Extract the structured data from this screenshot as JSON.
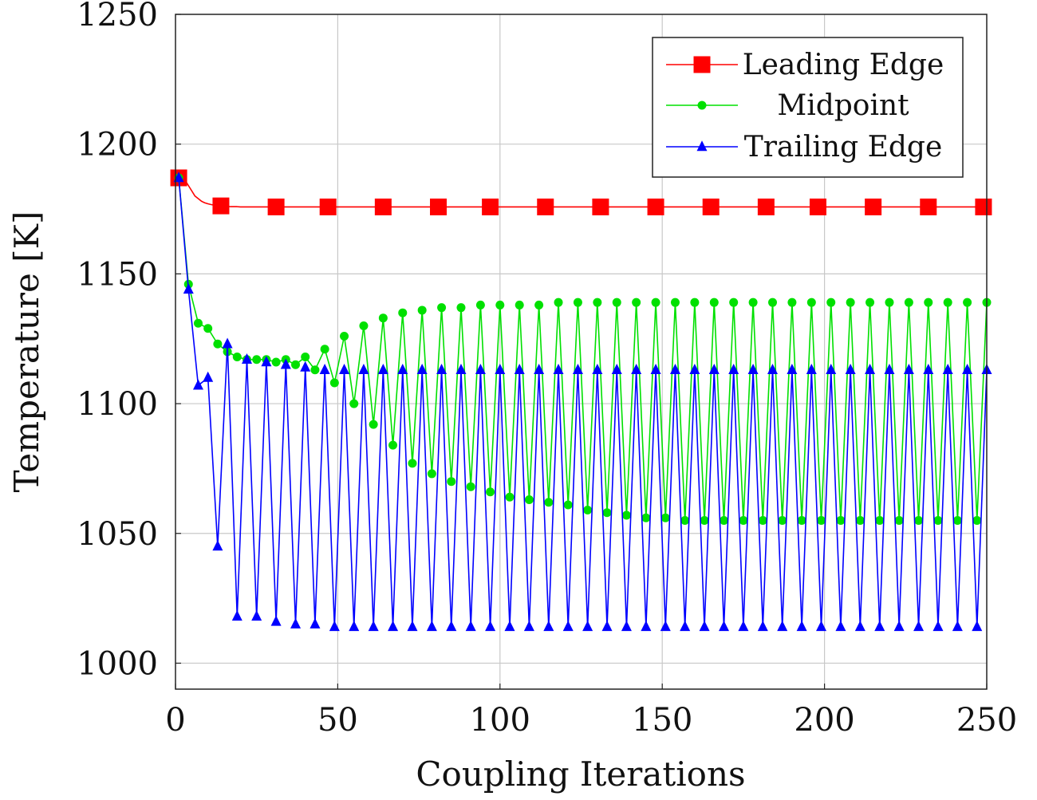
{
  "chart_data": {
    "type": "line",
    "title": "",
    "xlabel": "Coupling Iterations",
    "ylabel": "Temperature [K]",
    "xlim": [
      0,
      250
    ],
    "ylim": [
      990,
      1250
    ],
    "xticks": [
      0,
      50,
      100,
      150,
      200,
      250
    ],
    "yticks": [
      1000,
      1050,
      1100,
      1150,
      1200,
      1250
    ],
    "grid": true,
    "legend_position": "top-right",
    "series": [
      {
        "name": "Leading Edge",
        "color": "#ff0000",
        "marker": "square",
        "x": [
          1,
          2,
          3,
          4,
          5,
          6,
          7,
          8,
          9,
          10,
          11,
          12,
          13,
          14,
          15,
          16,
          17,
          18,
          19,
          20,
          22,
          25,
          28,
          31,
          35,
          40,
          45,
          47,
          50,
          60,
          64,
          70,
          80,
          81,
          90,
          97,
          100,
          110,
          114,
          120,
          130,
          131,
          140,
          148,
          150,
          160,
          165,
          170,
          180,
          182,
          190,
          198,
          200,
          210,
          215,
          220,
          230,
          232,
          240,
          249,
          250
        ],
        "y": [
          1187,
          1187,
          1186,
          1184,
          1182,
          1180,
          1179,
          1178,
          1177.4,
          1177,
          1176.7,
          1176.5,
          1176.3,
          1176.2,
          1176.1,
          1176,
          1175.9,
          1175.9,
          1175.9,
          1175.8,
          1175.8,
          1175.8,
          1175.8,
          1175.8,
          1175.8,
          1175.8,
          1175.8,
          1175.8,
          1175.8,
          1175.8,
          1175.8,
          1175.8,
          1175.8,
          1175.8,
          1175.8,
          1175.8,
          1175.8,
          1175.8,
          1175.8,
          1175.8,
          1175.8,
          1175.8,
          1175.8,
          1175.8,
          1175.8,
          1175.8,
          1175.8,
          1175.8,
          1175.8,
          1175.8,
          1175.8,
          1175.8,
          1175.8,
          1175.8,
          1175.8,
          1175.8,
          1175.8,
          1175.8,
          1175.8,
          1175.8,
          1175.8
        ],
        "marker_x": [
          1,
          14,
          31,
          47,
          64,
          81,
          97,
          114,
          131,
          148,
          165,
          182,
          198,
          215,
          232,
          249
        ]
      },
      {
        "name": "Midpoint",
        "color": "#00e000",
        "marker": "circle",
        "x": [
          1,
          4,
          7,
          10,
          13,
          16,
          19,
          22,
          25,
          28,
          31,
          34,
          37,
          40,
          43,
          46,
          49,
          52,
          55,
          58,
          61,
          64,
          67,
          70,
          73,
          76,
          79,
          82,
          85,
          88,
          91,
          94,
          97,
          100,
          103,
          106,
          109,
          112,
          115,
          118,
          121,
          124,
          127,
          130,
          133,
          136,
          139,
          142,
          145,
          148,
          151,
          154,
          157,
          160,
          163,
          166,
          169,
          172,
          175,
          178,
          181,
          184,
          187,
          190,
          193,
          196,
          199,
          202,
          205,
          208,
          211,
          214,
          217,
          220,
          223,
          226,
          229,
          232,
          235,
          238,
          241,
          244,
          247,
          250
        ],
        "y": [
          1187,
          1146,
          1131,
          1129,
          1123,
          1120,
          1118,
          1117,
          1117,
          1117,
          1116,
          1117,
          1115,
          1118,
          1113,
          1121,
          1108,
          1126,
          1100,
          1130,
          1092,
          1133,
          1084,
          1135,
          1077,
          1136,
          1073,
          1137,
          1070,
          1137,
          1068,
          1138,
          1066,
          1138,
          1064,
          1138,
          1063,
          1138,
          1062,
          1139,
          1061,
          1139,
          1059,
          1139,
          1058,
          1139,
          1057,
          1139,
          1056,
          1139,
          1056,
          1139,
          1055,
          1139,
          1055,
          1139,
          1055,
          1139,
          1055,
          1139,
          1055,
          1139,
          1055,
          1139,
          1055,
          1139,
          1055,
          1139,
          1055,
          1139,
          1055,
          1139,
          1055,
          1139,
          1055,
          1139,
          1055,
          1139,
          1055,
          1139,
          1055,
          1139,
          1055,
          1139
        ]
      },
      {
        "name": "Trailing Edge",
        "color": "#0000ff",
        "marker": "triangle",
        "x": [
          1,
          4,
          7,
          10,
          13,
          16,
          19,
          22,
          25,
          28,
          31,
          34,
          37,
          40,
          43,
          46,
          49,
          52,
          55,
          58,
          61,
          64,
          67,
          70,
          73,
          76,
          79,
          82,
          85,
          88,
          91,
          94,
          97,
          100,
          103,
          106,
          109,
          112,
          115,
          118,
          121,
          124,
          127,
          130,
          133,
          136,
          139,
          142,
          145,
          148,
          151,
          154,
          157,
          160,
          163,
          166,
          169,
          172,
          175,
          178,
          181,
          184,
          187,
          190,
          193,
          196,
          199,
          202,
          205,
          208,
          211,
          214,
          217,
          220,
          223,
          226,
          229,
          232,
          235,
          238,
          241,
          244,
          247,
          250
        ],
        "y": [
          1187,
          1144,
          1107,
          1110,
          1045,
          1123,
          1018,
          1117,
          1018,
          1116,
          1016,
          1115,
          1015,
          1114,
          1015,
          1113,
          1014,
          1113,
          1014,
          1113,
          1014,
          1113,
          1014,
          1113,
          1014,
          1113,
          1014,
          1113,
          1014,
          1113,
          1014,
          1113,
          1014,
          1113,
          1014,
          1113,
          1014,
          1113,
          1014,
          1113,
          1014,
          1113,
          1014,
          1113,
          1014,
          1113,
          1014,
          1113,
          1014,
          1113,
          1014,
          1113,
          1014,
          1113,
          1014,
          1113,
          1014,
          1113,
          1014,
          1113,
          1014,
          1113,
          1014,
          1113,
          1014,
          1113,
          1014,
          1113,
          1014,
          1113,
          1014,
          1113,
          1014,
          1113,
          1014,
          1113,
          1014,
          1113,
          1014,
          1113,
          1014,
          1113,
          1014,
          1113
        ]
      }
    ]
  }
}
